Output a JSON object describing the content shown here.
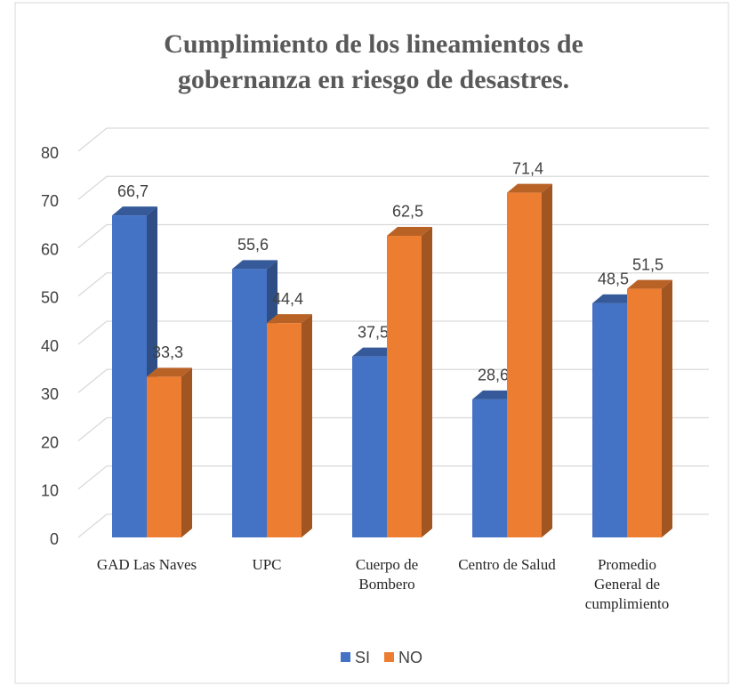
{
  "chart_data": {
    "type": "bar3d",
    "title": "Cumplimiento de los lineamientos de gobernanza en riesgo de desastres.",
    "categories": [
      "GAD Las Naves",
      "UPC",
      "Cuerpo de Bombero",
      "Centro de Salud",
      "Promedio General de cumplimiento"
    ],
    "series": [
      {
        "name": "SI",
        "color": "#4472c4",
        "values": [
          66.7,
          55.6,
          37.5,
          28.6,
          48.5
        ],
        "value_labels": [
          "66,7",
          "55,6",
          "37,5",
          "28,6",
          "48,5"
        ]
      },
      {
        "name": "NO",
        "color": "#ed7d31",
        "values": [
          33.3,
          44.4,
          62.5,
          71.4,
          51.5
        ],
        "value_labels": [
          "33,3",
          "44,4",
          "62,5",
          "71,4",
          "51,5"
        ]
      }
    ],
    "ylim": [
      0,
      80
    ],
    "yticks": [
      0,
      10,
      20,
      30,
      40,
      50,
      60,
      70,
      80
    ],
    "grid": true,
    "legend": "bottom"
  }
}
